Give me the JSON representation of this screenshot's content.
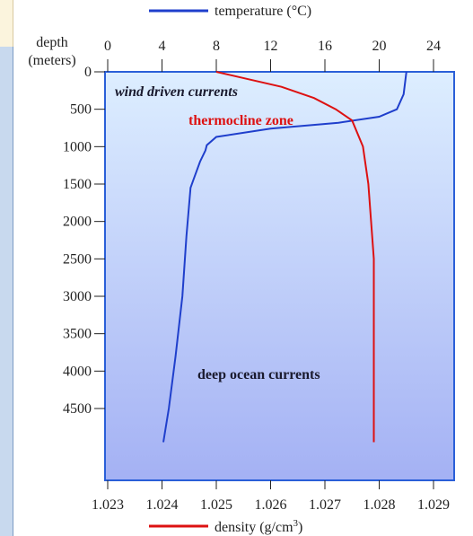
{
  "legend": {
    "temperature_label": "temperature (°C)",
    "density_label_main": "density  (g/cm",
    "density_label_sup": "3",
    "density_label_end": ")"
  },
  "colors": {
    "temperature": "#1f3fcc",
    "density": "#dd1111",
    "plot_top": "#ddeeff",
    "plot_bottom": "#a4b1f4",
    "frame": "#2a5fd8"
  },
  "annotations": {
    "wind_driven": "wind driven currents",
    "thermocline": "thermocline zone",
    "deep_ocean": "deep ocean currents"
  },
  "chart_data": {
    "type": "line",
    "y_axis": {
      "label_line1": "depth",
      "label_line2": "(meters)",
      "ticks": [
        0,
        500,
        1000,
        1500,
        2000,
        2500,
        3000,
        3500,
        4000,
        4500
      ],
      "inverted": true
    },
    "x_axis_top": {
      "ticks": [
        0,
        4,
        8,
        12,
        16,
        20,
        24
      ]
    },
    "x_axis_bottom": {
      "ticks": [
        "1.023",
        "1.024",
        "1.025",
        "1.026",
        "1.027",
        "1.028",
        "1.029"
      ]
    },
    "series": [
      {
        "name": "temperature (°C)",
        "axis": "top",
        "points": [
          [
            22,
            0
          ],
          [
            21.8,
            300
          ],
          [
            21.3,
            500
          ],
          [
            20,
            600
          ],
          [
            17,
            680
          ],
          [
            12,
            760
          ],
          [
            8,
            870
          ],
          [
            7.3,
            980
          ],
          [
            7.2,
            1050
          ],
          [
            6.8,
            1200
          ],
          [
            6.3,
            1450
          ],
          [
            6.1,
            1550
          ],
          [
            5.8,
            2200
          ],
          [
            5.5,
            3000
          ],
          [
            5,
            3800
          ],
          [
            4.5,
            4500
          ],
          [
            4.1,
            4950
          ]
        ]
      },
      {
        "name": "density (g/cm³)",
        "axis": "bottom",
        "points": [
          [
            1.025,
            0
          ],
          [
            1.0253,
            50
          ],
          [
            1.0262,
            200
          ],
          [
            1.0268,
            350
          ],
          [
            1.0272,
            500
          ],
          [
            1.0275,
            650
          ],
          [
            1.0277,
            1000
          ],
          [
            1.0278,
            1500
          ],
          [
            1.0279,
            2500
          ],
          [
            1.0279,
            4950
          ]
        ]
      }
    ],
    "grid": false
  }
}
